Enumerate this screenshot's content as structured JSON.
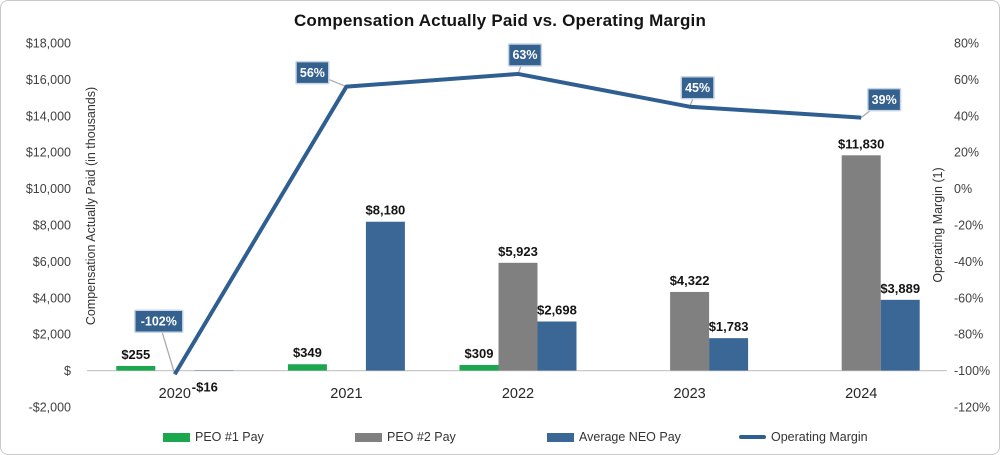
{
  "chart_data": {
    "type": "bar",
    "subtype": "clustered-bar-with-line-on-secondary-axis",
    "title": "Compensation Actually Paid vs. Operating Margin",
    "categories": [
      "2020",
      "2021",
      "2022",
      "2023",
      "2024"
    ],
    "series": [
      {
        "name": "PEO #1 Pay",
        "kind": "bar",
        "axis": "left",
        "color": "#1CA64D",
        "values": [
          255,
          349,
          309,
          null,
          null
        ],
        "labels": [
          "$255",
          "$349",
          "$309",
          "",
          ""
        ]
      },
      {
        "name": "PEO #2 Pay",
        "kind": "bar",
        "axis": "left",
        "color": "#808080",
        "values": [
          null,
          null,
          5923,
          4322,
          11830
        ],
        "labels": [
          "",
          "",
          "$5,923",
          "$4,322",
          "$11,830"
        ]
      },
      {
        "name": "Average NEO Pay",
        "kind": "bar",
        "axis": "left",
        "color": "#3A6795",
        "values": [
          -16,
          8180,
          2698,
          1783,
          3889
        ],
        "labels": [
          "-$16",
          "$8,180",
          "$2,698",
          "$1,783",
          "$3,889"
        ]
      },
      {
        "name": "Operating Margin",
        "kind": "line",
        "axis": "right",
        "color": "#2F5F90",
        "values": [
          -102,
          56,
          63,
          45,
          39
        ],
        "labels": [
          "-102%",
          "56%",
          "63%",
          "45%",
          "39%"
        ]
      }
    ],
    "left_axis": {
      "title": "Compensation Actually Paid (in thousands)",
      "max": 18000,
      "min": -2000,
      "ticks": [
        "$18,000",
        "$16,000",
        "$14,000",
        "$12,000",
        "$10,000",
        "$8,000",
        "$6,000",
        "$4,000",
        "$2,000",
        "$",
        "-$2,000"
      ]
    },
    "right_axis": {
      "title": "Operating Margin (1)",
      "max": 80,
      "min": -120,
      "ticks": [
        "80%",
        "60%",
        "40%",
        "20%",
        "0%",
        "-20%",
        "-40%",
        "-60%",
        "-80%",
        "-100%",
        "-120%"
      ]
    },
    "gridlines": false,
    "legend_position": "bottom",
    "callout_style": {
      "fill": "#35618E",
      "border": "#C7D5E8",
      "text_color": "#FFFFFF",
      "leader_color": "#ABABAB"
    }
  }
}
